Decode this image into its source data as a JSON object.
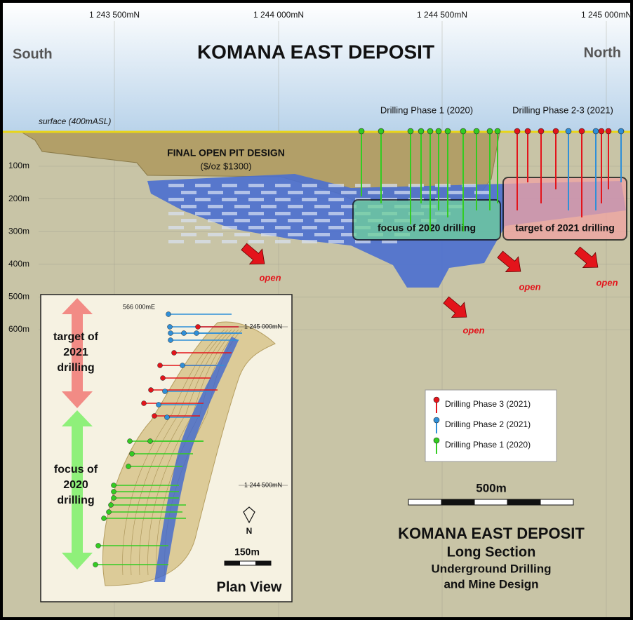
{
  "header": {
    "title": "KOMANA EAST DEPOSIT",
    "left": "South",
    "right": "North",
    "northings": [
      "1 243 500mN",
      "1 244 000mN",
      "1 244 500mN",
      "1 245 000mN"
    ]
  },
  "section": {
    "surface": "surface (400mASL)",
    "phase1": "Drilling Phase 1 (2020)",
    "phase23": "Drilling Phase 2-3 (2021)",
    "pit_design": "FINAL OPEN PIT DESIGN",
    "pit_price": "($/oz $1300)",
    "depths": [
      "100m",
      "200m",
      "300m",
      "400m",
      "500m",
      "600m"
    ],
    "focus_box": "focus of 2020 drilling",
    "target_box": "target of 2021 drilling",
    "open_labels": [
      "open",
      "open",
      "open",
      "open"
    ]
  },
  "plan_view": {
    "easting": "566 000mE",
    "northings": [
      "1 245 000mN",
      "1 244 500mN"
    ],
    "target_lines": [
      "target of",
      "2021",
      "drilling"
    ],
    "focus_lines": [
      "focus of",
      "2020",
      "drilling"
    ],
    "north": "N",
    "scale": "150m",
    "title": "Plan View"
  },
  "legend": {
    "items": [
      {
        "label": "Drilling Phase 3 (2021)",
        "color": "#e3141b"
      },
      {
        "label": "Drilling Phase 2 (2021)",
        "color": "#2f8fd8"
      },
      {
        "label": "Drilling Phase 1 (2020)",
        "color": "#33cc22"
      }
    ]
  },
  "scale_bar": {
    "label": "500m"
  },
  "footer": {
    "lines": [
      "KOMANA EAST DEPOSIT",
      "Long Section",
      "Underground Drilling",
      "and Mine Design"
    ]
  }
}
